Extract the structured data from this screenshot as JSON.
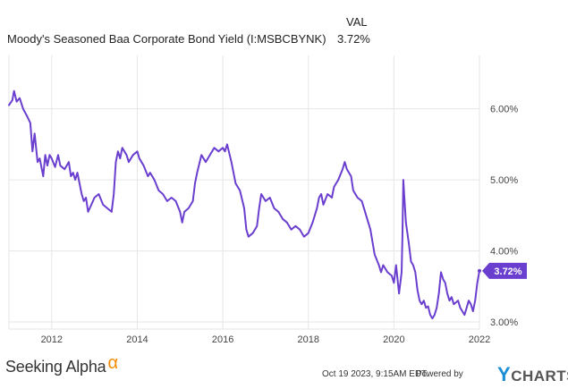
{
  "legend": {
    "header": "VAL",
    "series_name": "Moody's Seasoned Baa Corporate Bond Yield (I:MSBCBYNK)",
    "series_value": "3.72%"
  },
  "colors": {
    "line": "#6a3ecf",
    "grid": "#e6e6e6",
    "axis_text": "#444444",
    "badge_text": "#ffffff"
  },
  "chart_data": {
    "type": "line",
    "title": "Moody's Seasoned Baa Corporate Bond Yield (I:MSBCBYNK)",
    "xlabel": "",
    "ylabel": "",
    "xlim": [
      2011.0,
      2022.0
    ],
    "ylim": [
      2.9,
      6.75
    ],
    "x_ticks": [
      2012,
      2014,
      2016,
      2018,
      2020,
      2022
    ],
    "x_tick_labels": [
      "2012",
      "2014",
      "2016",
      "2018",
      "2020",
      "2022"
    ],
    "y_ticks": [
      3.0,
      4.0,
      5.0,
      6.0
    ],
    "y_tick_labels": [
      "3.00%",
      "4.00%",
      "5.00%",
      "6.00%"
    ],
    "last_value_label": "3.72%",
    "series": [
      {
        "name": "Moody's Seasoned Baa Corporate Bond Yield",
        "points": [
          [
            2011.0,
            6.05
          ],
          [
            2011.08,
            6.12
          ],
          [
            2011.12,
            6.25
          ],
          [
            2011.18,
            6.1
          ],
          [
            2011.25,
            6.15
          ],
          [
            2011.33,
            6.0
          ],
          [
            2011.42,
            5.9
          ],
          [
            2011.5,
            5.8
          ],
          [
            2011.55,
            5.4
          ],
          [
            2011.6,
            5.65
          ],
          [
            2011.67,
            5.25
          ],
          [
            2011.72,
            5.3
          ],
          [
            2011.8,
            5.05
          ],
          [
            2011.85,
            5.35
          ],
          [
            2011.9,
            5.2
          ],
          [
            2011.95,
            5.35
          ],
          [
            2012.0,
            5.3
          ],
          [
            2012.08,
            5.18
          ],
          [
            2012.15,
            5.35
          ],
          [
            2012.2,
            5.2
          ],
          [
            2012.3,
            5.15
          ],
          [
            2012.4,
            5.25
          ],
          [
            2012.45,
            5.05
          ],
          [
            2012.5,
            5.1
          ],
          [
            2012.55,
            5.0
          ],
          [
            2012.6,
            5.1
          ],
          [
            2012.7,
            4.8
          ],
          [
            2012.75,
            4.7
          ],
          [
            2012.8,
            4.75
          ],
          [
            2012.85,
            4.55
          ],
          [
            2012.95,
            4.68
          ],
          [
            2013.0,
            4.75
          ],
          [
            2013.1,
            4.8
          ],
          [
            2013.2,
            4.65
          ],
          [
            2013.3,
            4.6
          ],
          [
            2013.4,
            4.55
          ],
          [
            2013.45,
            4.8
          ],
          [
            2013.5,
            5.25
          ],
          [
            2013.55,
            5.4
          ],
          [
            2013.6,
            5.3
          ],
          [
            2013.65,
            5.45
          ],
          [
            2013.75,
            5.35
          ],
          [
            2013.8,
            5.25
          ],
          [
            2013.9,
            5.35
          ],
          [
            2014.0,
            5.4
          ],
          [
            2014.05,
            5.3
          ],
          [
            2014.15,
            5.2
          ],
          [
            2014.25,
            5.05
          ],
          [
            2014.3,
            5.1
          ],
          [
            2014.4,
            5.0
          ],
          [
            2014.5,
            4.85
          ],
          [
            2014.6,
            4.8
          ],
          [
            2014.7,
            4.7
          ],
          [
            2014.8,
            4.75
          ],
          [
            2014.9,
            4.7
          ],
          [
            2015.0,
            4.55
          ],
          [
            2015.05,
            4.4
          ],
          [
            2015.1,
            4.55
          ],
          [
            2015.2,
            4.6
          ],
          [
            2015.3,
            4.7
          ],
          [
            2015.35,
            4.95
          ],
          [
            2015.4,
            5.1
          ],
          [
            2015.5,
            5.35
          ],
          [
            2015.6,
            5.25
          ],
          [
            2015.7,
            5.35
          ],
          [
            2015.8,
            5.45
          ],
          [
            2015.9,
            5.4
          ],
          [
            2016.0,
            5.45
          ],
          [
            2016.05,
            5.4
          ],
          [
            2016.1,
            5.5
          ],
          [
            2016.2,
            5.25
          ],
          [
            2016.3,
            4.95
          ],
          [
            2016.4,
            4.85
          ],
          [
            2016.5,
            4.6
          ],
          [
            2016.55,
            4.3
          ],
          [
            2016.6,
            4.2
          ],
          [
            2016.7,
            4.25
          ],
          [
            2016.8,
            4.35
          ],
          [
            2016.85,
            4.6
          ],
          [
            2016.9,
            4.8
          ],
          [
            2017.0,
            4.7
          ],
          [
            2017.1,
            4.75
          ],
          [
            2017.2,
            4.6
          ],
          [
            2017.3,
            4.55
          ],
          [
            2017.4,
            4.45
          ],
          [
            2017.5,
            4.4
          ],
          [
            2017.6,
            4.3
          ],
          [
            2017.7,
            4.35
          ],
          [
            2017.8,
            4.3
          ],
          [
            2017.9,
            4.2
          ],
          [
            2018.0,
            4.25
          ],
          [
            2018.1,
            4.4
          ],
          [
            2018.2,
            4.6
          ],
          [
            2018.25,
            4.75
          ],
          [
            2018.3,
            4.8
          ],
          [
            2018.35,
            4.65
          ],
          [
            2018.45,
            4.8
          ],
          [
            2018.55,
            4.75
          ],
          [
            2018.6,
            4.9
          ],
          [
            2018.7,
            5.0
          ],
          [
            2018.8,
            5.15
          ],
          [
            2018.85,
            5.25
          ],
          [
            2018.9,
            5.15
          ],
          [
            2019.0,
            5.05
          ],
          [
            2019.05,
            4.85
          ],
          [
            2019.15,
            4.75
          ],
          [
            2019.25,
            4.7
          ],
          [
            2019.35,
            4.5
          ],
          [
            2019.45,
            4.3
          ],
          [
            2019.55,
            3.95
          ],
          [
            2019.65,
            3.8
          ],
          [
            2019.7,
            3.7
          ],
          [
            2019.75,
            3.8
          ],
          [
            2019.85,
            3.7
          ],
          [
            2019.95,
            3.65
          ],
          [
            2020.0,
            3.55
          ],
          [
            2020.05,
            3.8
          ],
          [
            2020.12,
            3.4
          ],
          [
            2020.18,
            3.7
          ],
          [
            2020.2,
            4.2
          ],
          [
            2020.22,
            5.0
          ],
          [
            2020.24,
            4.8
          ],
          [
            2020.28,
            4.4
          ],
          [
            2020.35,
            4.1
          ],
          [
            2020.4,
            3.85
          ],
          [
            2020.45,
            3.8
          ],
          [
            2020.5,
            3.7
          ],
          [
            2020.55,
            3.45
          ],
          [
            2020.6,
            3.3
          ],
          [
            2020.65,
            3.25
          ],
          [
            2020.7,
            3.3
          ],
          [
            2020.75,
            3.2
          ],
          [
            2020.8,
            3.22
          ],
          [
            2020.85,
            3.1
          ],
          [
            2020.9,
            3.05
          ],
          [
            2020.95,
            3.1
          ],
          [
            2021.0,
            3.2
          ],
          [
            2021.05,
            3.4
          ],
          [
            2021.1,
            3.7
          ],
          [
            2021.15,
            3.6
          ],
          [
            2021.2,
            3.55
          ],
          [
            2021.25,
            3.4
          ],
          [
            2021.3,
            3.3
          ],
          [
            2021.35,
            3.35
          ],
          [
            2021.4,
            3.25
          ],
          [
            2021.5,
            3.3
          ],
          [
            2021.55,
            3.2
          ],
          [
            2021.6,
            3.15
          ],
          [
            2021.65,
            3.1
          ],
          [
            2021.7,
            3.2
          ],
          [
            2021.75,
            3.3
          ],
          [
            2021.8,
            3.25
          ],
          [
            2021.85,
            3.15
          ],
          [
            2021.9,
            3.3
          ],
          [
            2021.95,
            3.55
          ],
          [
            2022.0,
            3.72
          ]
        ]
      }
    ]
  },
  "footer": {
    "brand": "Seeking Alpha",
    "brand_symbol": "α",
    "timestamp": "Oct 19 2023, 9:15AM EDT.",
    "powered_by": "Powered by",
    "logo_prefix": "Y",
    "logo_suffix": "CHARTS"
  }
}
